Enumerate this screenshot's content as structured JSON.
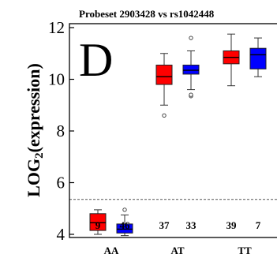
{
  "chart_data": {
    "type": "box",
    "title": "Probeset 2903428 vs rs1042448",
    "panel_label": "D",
    "ylabel": "LOG2(expression)",
    "ylabel_parts": {
      "main": "LOG",
      "sub": "2",
      "rest": "(expression)"
    },
    "ylim": [
      3.8,
      12.2
    ],
    "yticks": [
      4,
      6,
      8,
      10,
      12
    ],
    "reference_line": 5.35,
    "categories": [
      "AA",
      "AT",
      "TT"
    ],
    "colors": {
      "series_a": "#ff0000",
      "series_b": "#0000ff"
    },
    "boxes": [
      {
        "category": "AA",
        "color": "red",
        "count": "9",
        "whisker_low": 4.0,
        "q1": 4.15,
        "median": 4.45,
        "q3": 4.8,
        "whisker_high": 4.95,
        "outliers": []
      },
      {
        "category": "AA",
        "color": "blue",
        "count": "46",
        "whisker_low": 3.95,
        "q1": 4.05,
        "median": 4.2,
        "q3": 4.4,
        "whisker_high": 4.75,
        "outliers": [
          4.95
        ]
      },
      {
        "category": "AT",
        "color": "red",
        "count": "37",
        "whisker_low": 9.0,
        "q1": 9.8,
        "median": 10.1,
        "q3": 10.55,
        "whisker_high": 11.0,
        "outliers": [
          8.6
        ]
      },
      {
        "category": "AT",
        "color": "blue",
        "count": "33",
        "whisker_low": 9.6,
        "q1": 10.2,
        "median": 10.35,
        "q3": 10.55,
        "whisker_high": 11.1,
        "outliers": [
          9.35,
          9.4,
          11.6
        ]
      },
      {
        "category": "TT",
        "color": "red",
        "count": "39",
        "whisker_low": 9.75,
        "q1": 10.6,
        "median": 10.85,
        "q3": 11.1,
        "whisker_high": 11.75,
        "outliers": []
      },
      {
        "category": "TT",
        "color": "blue",
        "count": "7",
        "whisker_low": 10.1,
        "q1": 10.4,
        "median": 10.95,
        "q3": 11.2,
        "whisker_high": 11.6,
        "outliers": []
      }
    ]
  }
}
